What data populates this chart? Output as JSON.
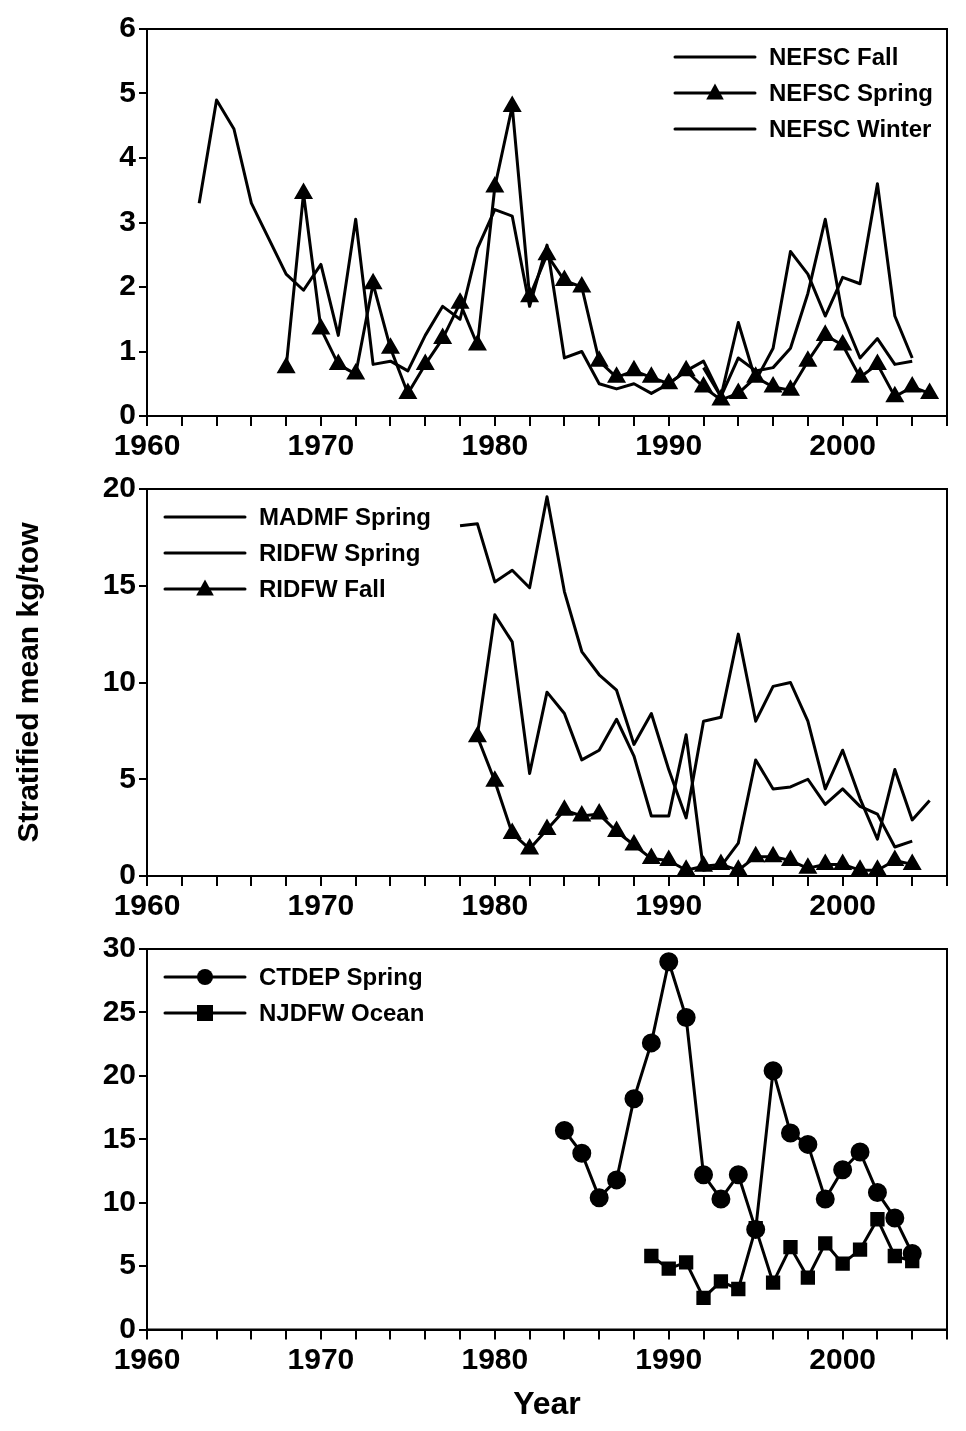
{
  "chart_data": [
    {
      "type": "line",
      "xlim": [
        1960,
        2006
      ],
      "xticks": [
        1960,
        {
          "value": 1962,
          "label": null
        },
        {
          "value": 1964,
          "label": null
        },
        {
          "value": 1966,
          "label": null
        },
        {
          "value": 1968,
          "label": null
        },
        1970,
        {
          "value": 1972,
          "label": null
        },
        {
          "value": 1974,
          "label": null
        },
        {
          "value": 1976,
          "label": null
        },
        {
          "value": 1978,
          "label": null
        },
        1980,
        {
          "value": 1982,
          "label": null
        },
        {
          "value": 1984,
          "label": null
        },
        {
          "value": 1986,
          "label": null
        },
        {
          "value": 1988,
          "label": null
        },
        1990,
        {
          "value": 1992,
          "label": null
        },
        {
          "value": 1994,
          "label": null
        },
        {
          "value": 1996,
          "label": null
        },
        {
          "value": 1998,
          "label": null
        },
        2000,
        {
          "value": 2002,
          "label": null
        },
        {
          "value": 2004,
          "label": null
        },
        {
          "value": 2006,
          "label": null
        }
      ],
      "ylim": [
        0,
        6
      ],
      "yticks": [
        0,
        1,
        2,
        3,
        4,
        5,
        6
      ],
      "grid": false,
      "legend": "top right",
      "series": [
        {
          "name": "NEFSC Fall",
          "color": "#000000",
          "marker": "none",
          "x": [
            1963,
            1964,
            1965,
            1966,
            1967,
            1968,
            1969,
            1970,
            1971,
            1972,
            1973,
            1974,
            1975,
            1976,
            1977,
            1978,
            1979,
            1980,
            1981,
            1982,
            1983,
            1984,
            1985,
            1986,
            1987,
            1988,
            1989,
            1990,
            1991,
            1992,
            1993,
            1994,
            1995,
            1996,
            1997,
            1998,
            1999,
            2000,
            2001,
            2002,
            2003,
            2004
          ],
          "values": [
            3.3,
            4.9,
            4.45,
            3.3,
            2.75,
            2.2,
            1.95,
            2.35,
            1.25,
            3.05,
            0.8,
            0.85,
            0.7,
            1.25,
            1.7,
            1.5,
            2.6,
            3.2,
            3.1,
            1.7,
            2.65,
            0.9,
            1.0,
            0.5,
            0.42,
            0.5,
            0.35,
            0.5,
            0.7,
            0.85,
            0.3,
            1.45,
            0.55,
            1.05,
            2.55,
            2.2,
            1.55,
            2.15,
            2.05,
            3.6,
            1.55,
            0.9
          ]
        },
        {
          "name": "NEFSC Spring",
          "color": "#000000",
          "marker": "triangle",
          "x": [
            1968,
            1969,
            1970,
            1971,
            1972,
            1973,
            1974,
            1975,
            1976,
            1977,
            1978,
            1979,
            1980,
            1981,
            1982,
            1983,
            1984,
            1985,
            1986,
            1987,
            1988,
            1989,
            1990,
            1991,
            1992,
            1993,
            1994,
            1995,
            1996,
            1997,
            1998,
            1999,
            2000,
            2001,
            2002,
            2003,
            2004,
            2005
          ],
          "values": [
            0.75,
            3.45,
            1.35,
            0.8,
            0.65,
            2.05,
            1.05,
            0.35,
            0.8,
            1.2,
            1.75,
            1.1,
            3.55,
            4.8,
            1.85,
            2.5,
            2.1,
            2.0,
            0.85,
            0.6,
            0.7,
            0.6,
            0.5,
            0.7,
            0.45,
            0.25,
            0.35,
            0.6,
            0.45,
            0.4,
            0.85,
            1.25,
            1.1,
            0.6,
            0.8,
            0.3,
            0.45,
            0.35
          ]
        },
        {
          "name": "NEFSC Winter",
          "color": "#000000",
          "marker": "none",
          "x": [
            1992,
            1993,
            1994,
            1995,
            1996,
            1997,
            1998,
            1999,
            2000,
            2001,
            2002,
            2003,
            2004
          ],
          "values": [
            0.75,
            0.3,
            0.9,
            0.7,
            0.75,
            1.05,
            1.9,
            3.05,
            1.55,
            0.9,
            1.2,
            0.8,
            0.85
          ]
        }
      ]
    },
    {
      "type": "line",
      "ylabel": "Stratified mean kg/tow",
      "xlim": [
        1960,
        2006
      ],
      "xticks": [
        1960,
        {
          "value": 1962,
          "label": null
        },
        {
          "value": 1964,
          "label": null
        },
        {
          "value": 1966,
          "label": null
        },
        {
          "value": 1968,
          "label": null
        },
        1970,
        {
          "value": 1972,
          "label": null
        },
        {
          "value": 1974,
          "label": null
        },
        {
          "value": 1976,
          "label": null
        },
        {
          "value": 1978,
          "label": null
        },
        1980,
        {
          "value": 1982,
          "label": null
        },
        {
          "value": 1984,
          "label": null
        },
        {
          "value": 1986,
          "label": null
        },
        {
          "value": 1988,
          "label": null
        },
        1990,
        {
          "value": 1992,
          "label": null
        },
        {
          "value": 1994,
          "label": null
        },
        {
          "value": 1996,
          "label": null
        },
        {
          "value": 1998,
          "label": null
        },
        2000,
        {
          "value": 2002,
          "label": null
        },
        {
          "value": 2004,
          "label": null
        },
        {
          "value": 2006,
          "label": null
        }
      ],
      "ylim": [
        0,
        20
      ],
      "yticks": [
        0,
        5,
        10,
        15,
        20
      ],
      "grid": false,
      "legend": "top left",
      "series": [
        {
          "name": "MADMF Spring",
          "color": "#000000",
          "marker": "none",
          "x": [
            1978,
            1979,
            1980,
            1981,
            1982,
            1983,
            1984,
            1985,
            1986,
            1987,
            1988,
            1989,
            1990,
            1991,
            1992,
            1993,
            1994,
            1995,
            1996,
            1997,
            1998,
            1999,
            2000,
            2001,
            2002,
            2003,
            2004,
            2005
          ],
          "values": [
            18.1,
            18.2,
            15.2,
            15.8,
            14.9,
            19.6,
            14.7,
            11.6,
            10.4,
            9.6,
            6.8,
            8.4,
            5.5,
            3.0,
            8.0,
            8.2,
            12.5,
            8.0,
            9.8,
            10.0,
            8.0,
            4.5,
            6.5,
            4.0,
            1.9,
            5.5,
            2.9,
            3.9
          ]
        },
        {
          "name": "RIDFW Spring",
          "color": "#000000",
          "marker": "none",
          "x": [
            1979,
            1980,
            1981,
            1982,
            1983,
            1984,
            1985,
            1986,
            1987,
            1988,
            1989,
            1990,
            1991,
            1992,
            1993,
            1994,
            1995,
            1996,
            1997,
            1998,
            1999,
            2000,
            2001,
            2002,
            2003,
            2004
          ],
          "values": [
            7.3,
            13.5,
            12.1,
            5.3,
            9.5,
            8.4,
            6.0,
            6.5,
            8.1,
            6.2,
            3.1,
            3.1,
            7.3,
            0.3,
            0.5,
            1.7,
            6.0,
            4.5,
            4.6,
            5.0,
            3.7,
            4.5,
            3.6,
            3.2,
            1.5,
            1.8
          ]
        },
        {
          "name": "RIDFW Fall",
          "color": "#000000",
          "marker": "triangle",
          "x": [
            1979,
            1980,
            1981,
            1982,
            1983,
            1984,
            1985,
            1986,
            1987,
            1988,
            1989,
            1990,
            1991,
            1992,
            1993,
            1994,
            1995,
            1996,
            1997,
            1998,
            1999,
            2000,
            2001,
            2002,
            2003,
            2004
          ],
          "values": [
            7.2,
            4.9,
            2.2,
            1.4,
            2.4,
            3.4,
            3.1,
            3.2,
            2.3,
            1.6,
            0.9,
            0.8,
            0.3,
            0.5,
            0.6,
            0.3,
            1.0,
            1.0,
            0.8,
            0.4,
            0.6,
            0.6,
            0.3,
            0.3,
            0.8,
            0.6
          ]
        }
      ]
    },
    {
      "type": "line",
      "xlabel": "Year",
      "xlim": [
        1960,
        2006
      ],
      "xticks": [
        1960,
        {
          "value": 1962,
          "label": null
        },
        {
          "value": 1964,
          "label": null
        },
        {
          "value": 1966,
          "label": null
        },
        {
          "value": 1968,
          "label": null
        },
        1970,
        {
          "value": 1972,
          "label": null
        },
        {
          "value": 1974,
          "label": null
        },
        {
          "value": 1976,
          "label": null
        },
        {
          "value": 1978,
          "label": null
        },
        1980,
        {
          "value": 1982,
          "label": null
        },
        {
          "value": 1984,
          "label": null
        },
        {
          "value": 1986,
          "label": null
        },
        {
          "value": 1988,
          "label": null
        },
        1990,
        {
          "value": 1992,
          "label": null
        },
        {
          "value": 1994,
          "label": null
        },
        {
          "value": 1996,
          "label": null
        },
        {
          "value": 1998,
          "label": null
        },
        2000,
        {
          "value": 2002,
          "label": null
        },
        {
          "value": 2004,
          "label": null
        },
        {
          "value": 2006,
          "label": null
        }
      ],
      "ylim": [
        0,
        30
      ],
      "yticks": [
        0,
        5,
        10,
        15,
        20,
        25,
        30
      ],
      "grid": false,
      "legend": "top left",
      "series": [
        {
          "name": "CTDEP Spring",
          "color": "#000000",
          "marker": "circle",
          "x": [
            1984,
            1985,
            1986,
            1987,
            1988,
            1989,
            1990,
            1991,
            1992,
            1993,
            1994,
            1995,
            1996,
            1997,
            1998,
            1999,
            2000,
            2001,
            2002,
            2003,
            2004
          ],
          "values": [
            15.7,
            13.9,
            10.4,
            11.8,
            18.2,
            22.6,
            29.0,
            24.6,
            12.2,
            10.3,
            12.2,
            7.9,
            20.4,
            15.5,
            14.6,
            10.3,
            12.6,
            14.0,
            10.8,
            8.8,
            6.0
          ]
        },
        {
          "name": "NJDFW Ocean",
          "color": "#000000",
          "marker": "square",
          "x": [
            1989,
            1990,
            1991,
            1992,
            1993,
            1994,
            1995,
            1996,
            1997,
            1998,
            1999,
            2000,
            2001,
            2002,
            2003,
            2004
          ],
          "values": [
            5.8,
            4.8,
            5.3,
            2.5,
            3.8,
            3.2,
            8.0,
            3.7,
            6.5,
            4.1,
            6.8,
            5.2,
            6.3,
            8.7,
            5.8,
            5.4
          ]
        }
      ]
    }
  ]
}
